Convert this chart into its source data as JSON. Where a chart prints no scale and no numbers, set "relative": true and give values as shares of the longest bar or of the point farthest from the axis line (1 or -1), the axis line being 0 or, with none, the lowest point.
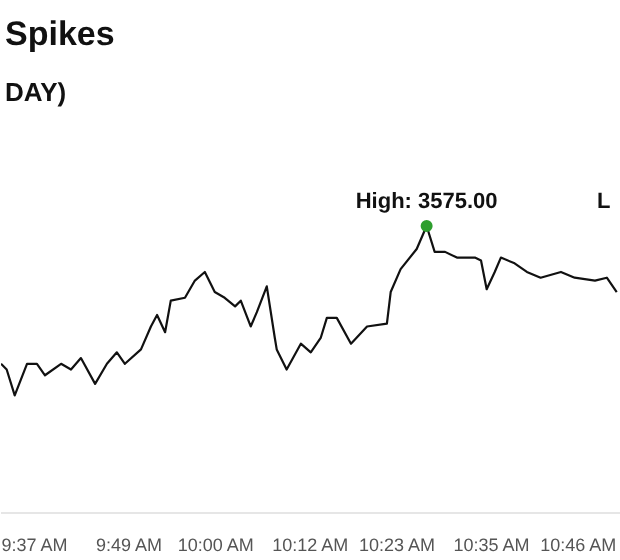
{
  "chart_data": {
    "type": "line",
    "title": "Spikes",
    "subtitle": "DAY)",
    "relative": true,
    "xlim": [
      9.545,
      10.856
    ],
    "xticks": [
      {
        "value": 9.6167,
        "label": "9:37 AM"
      },
      {
        "value": 9.8167,
        "label": "9:49 AM"
      },
      {
        "value": 10.0,
        "label": "10:00 AM"
      },
      {
        "value": 10.2,
        "label": "10:12 AM"
      },
      {
        "value": 10.3833,
        "label": "10:23 AM"
      },
      {
        "value": 10.5833,
        "label": "10:35 AM"
      },
      {
        "value": 10.7667,
        "label": "10:46 AM"
      }
    ],
    "series": [
      {
        "color": "#111111",
        "x": [
          9.545,
          9.557,
          9.574,
          9.6,
          9.621,
          9.638,
          9.672,
          9.693,
          9.714,
          9.744,
          9.769,
          9.79,
          9.807,
          9.841,
          9.862,
          9.875,
          9.892,
          9.904,
          9.934,
          9.955,
          9.976,
          9.997,
          10.018,
          10.04,
          10.052,
          10.073,
          10.086,
          10.107,
          10.124,
          10.128,
          10.149,
          10.179,
          10.2,
          10.221,
          10.234,
          10.255,
          10.285,
          10.319,
          10.361,
          10.369,
          10.39,
          10.424,
          10.445,
          10.462,
          10.484,
          10.509,
          10.547,
          10.56,
          10.572,
          10.589,
          10.602,
          10.631,
          10.657,
          10.686,
          10.729,
          10.758,
          10.801,
          10.826,
          10.847
        ],
        "values": [
          0.52,
          0.5,
          0.41,
          0.52,
          0.52,
          0.48,
          0.52,
          0.5,
          0.54,
          0.45,
          0.52,
          0.56,
          0.52,
          0.57,
          0.65,
          0.69,
          0.63,
          0.74,
          0.75,
          0.81,
          0.84,
          0.77,
          0.75,
          0.72,
          0.74,
          0.65,
          0.7,
          0.79,
          0.61,
          0.57,
          0.5,
          0.59,
          0.56,
          0.61,
          0.68,
          0.68,
          0.59,
          0.65,
          0.66,
          0.77,
          0.85,
          0.92,
          1,
          0.91,
          0.91,
          0.89,
          0.89,
          0.88,
          0.78,
          0.84,
          0.89,
          0.87,
          0.84,
          0.82,
          0.84,
          0.82,
          0.81,
          0.82,
          0.77
        ]
      },
      {
        "type": "scatter",
        "color": "#2e9e2e",
        "x": [
          10.445
        ],
        "values": [
          1
        ]
      }
    ],
    "annotations": [
      {
        "text": "High: 3575.00",
        "x": 10.445,
        "y": 1
      },
      "L"
    ],
    "line_style": "solid"
  }
}
